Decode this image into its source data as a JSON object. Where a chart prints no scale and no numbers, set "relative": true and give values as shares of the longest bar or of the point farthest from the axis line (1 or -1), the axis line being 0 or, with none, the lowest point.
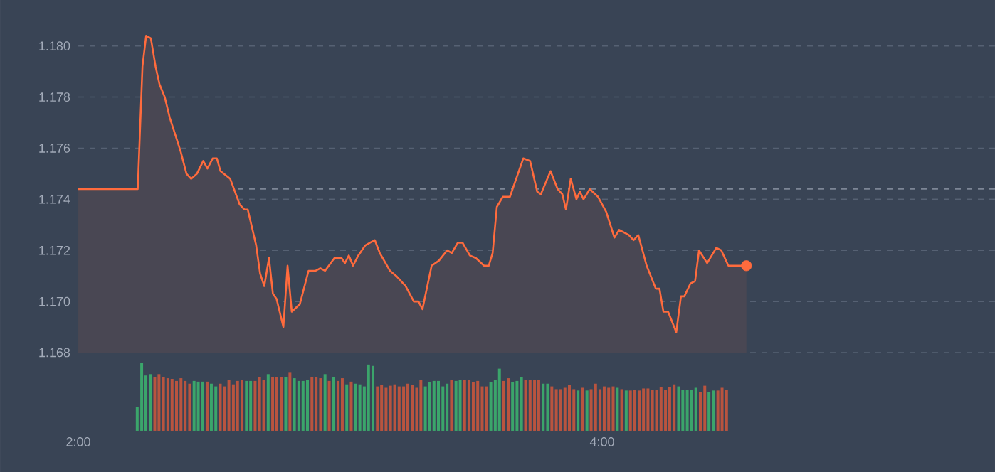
{
  "chart_data": [
    {
      "type": "area",
      "xlim": [
        2,
        5.5
      ],
      "ylim": [
        1.168,
        1.1818
      ],
      "yticks": [
        {
          "value": 1.168,
          "label": "1.168"
        },
        {
          "value": 1.17,
          "label": "1.170"
        },
        {
          "value": 1.172,
          "label": "1.172"
        },
        {
          "value": 1.174,
          "label": "1.174"
        },
        {
          "value": 1.176,
          "label": "1.176"
        },
        {
          "value": 1.178,
          "label": "1.178"
        },
        {
          "value": 1.18,
          "label": "1.180"
        }
      ],
      "grid": "y",
      "tick_labels": "y",
      "line_style": "solid",
      "ref_lines": [
        {
          "axis": "y",
          "value": 1.1744,
          "color": "#7d8696",
          "line_style": "dashed"
        }
      ],
      "series": [
        {
          "type": "area",
          "color": "#ff6b3d",
          "x": [
            2.0,
            2.227,
            2.245,
            2.259,
            2.277,
            2.295,
            2.31,
            2.33,
            2.349,
            2.39,
            2.413,
            2.431,
            2.453,
            2.477,
            2.493,
            2.513,
            2.529,
            2.543,
            2.58,
            2.616,
            2.634,
            2.647,
            2.679,
            2.694,
            2.71,
            2.728,
            2.743,
            2.757,
            2.783,
            2.799,
            2.815,
            2.846,
            2.879,
            2.906,
            2.924,
            2.942,
            2.978,
            3.005,
            3.018,
            3.033,
            3.049,
            3.069,
            3.096,
            3.114,
            3.132,
            3.151,
            3.19,
            3.214,
            3.25,
            3.281,
            3.299,
            3.314,
            3.349,
            3.377,
            3.408,
            3.426,
            3.449,
            3.467,
            3.495,
            3.518,
            3.549,
            3.567,
            3.582,
            3.598,
            3.621,
            3.648,
            3.699,
            3.725,
            3.752,
            3.766,
            3.803,
            3.83,
            3.848,
            3.862,
            3.88,
            3.902,
            3.915,
            3.929,
            3.953,
            3.984,
            4.016,
            4.047,
            4.065,
            4.102,
            4.12,
            4.138,
            4.17,
            4.205,
            4.219,
            4.234,
            4.252,
            4.283,
            4.301,
            4.314,
            4.337,
            4.355,
            4.37,
            4.401,
            4.436,
            4.455,
            4.482,
            4.551
          ],
          "values": [
            1.1744,
            1.1744,
            1.1792,
            1.1804,
            1.1803,
            1.1792,
            1.1785,
            1.178,
            1.1772,
            1.1759,
            1.175,
            1.1748,
            1.175,
            1.1755,
            1.1752,
            1.1756,
            1.1756,
            1.1751,
            1.1748,
            1.1738,
            1.1736,
            1.1736,
            1.1722,
            1.1711,
            1.1706,
            1.1717,
            1.1703,
            1.1701,
            1.169,
            1.1714,
            1.1696,
            1.1699,
            1.1712,
            1.1712,
            1.1713,
            1.1712,
            1.1717,
            1.1717,
            1.1715,
            1.1718,
            1.1714,
            1.1718,
            1.1722,
            1.1723,
            1.1724,
            1.1719,
            1.1712,
            1.171,
            1.1706,
            1.17,
            1.17,
            1.1697,
            1.1714,
            1.1716,
            1.172,
            1.1719,
            1.1723,
            1.1723,
            1.1718,
            1.1717,
            1.1714,
            1.1714,
            1.1719,
            1.1737,
            1.1741,
            1.1741,
            1.1756,
            1.1755,
            1.1743,
            1.1742,
            1.1751,
            1.1744,
            1.1742,
            1.1736,
            1.1748,
            1.174,
            1.1743,
            1.174,
            1.1744,
            1.1741,
            1.1735,
            1.1725,
            1.1728,
            1.1726,
            1.1724,
            1.1726,
            1.1714,
            1.1705,
            1.1705,
            1.1696,
            1.1696,
            1.1688,
            1.1702,
            1.1702,
            1.1707,
            1.1708,
            1.172,
            1.1715,
            1.1721,
            1.172,
            1.1714,
            1.1714
          ]
        },
        {
          "type": "scatter",
          "color": "#ff6b3d",
          "marker": "circle",
          "x": [
            4.551
          ],
          "values": [
            1.1714
          ]
        }
      ]
    },
    {
      "type": "bar",
      "relative": true,
      "xlim": [
        2,
        5.5
      ],
      "xticks": [
        {
          "value": 2,
          "label": "2:00"
        },
        {
          "value": 4,
          "label": "4:00"
        }
      ],
      "tick_labels": "x",
      "x": [
        2.225,
        2.242,
        2.258,
        2.275,
        2.292,
        2.308,
        2.325,
        2.342,
        2.358,
        2.375,
        2.392,
        2.408,
        2.425,
        2.442,
        2.458,
        2.475,
        2.492,
        2.508,
        2.525,
        2.542,
        2.558,
        2.575,
        2.592,
        2.608,
        2.625,
        2.642,
        2.658,
        2.675,
        2.692,
        2.708,
        2.725,
        2.742,
        2.758,
        2.775,
        2.792,
        2.808,
        2.825,
        2.842,
        2.858,
        2.875,
        2.892,
        2.908,
        2.925,
        2.942,
        2.958,
        2.975,
        2.992,
        3.008,
        3.025,
        3.042,
        3.058,
        3.075,
        3.092,
        3.108,
        3.125,
        3.142,
        3.158,
        3.175,
        3.192,
        3.208,
        3.225,
        3.242,
        3.258,
        3.275,
        3.292,
        3.308,
        3.325,
        3.342,
        3.358,
        3.375,
        3.392,
        3.408,
        3.425,
        3.442,
        3.458,
        3.475,
        3.492,
        3.508,
        3.525,
        3.542,
        3.558,
        3.575,
        3.592,
        3.608,
        3.625,
        3.642,
        3.658,
        3.675,
        3.692,
        3.708,
        3.725,
        3.742,
        3.758,
        3.775,
        3.792,
        3.808,
        3.825,
        3.842,
        3.858,
        3.875,
        3.892,
        3.908,
        3.925,
        3.942,
        3.958,
        3.975,
        3.992,
        4.008,
        4.025,
        4.042,
        4.058,
        4.075,
        4.092,
        4.108,
        4.125,
        4.142,
        4.158,
        4.175,
        4.192,
        4.208,
        4.225,
        4.242,
        4.258,
        4.275,
        4.292,
        4.308,
        4.325,
        4.342,
        4.358,
        4.375,
        4.392,
        4.408,
        4.425,
        4.442,
        4.458,
        4.475
      ],
      "values": [
        0.35,
        1.0,
        0.81,
        0.83,
        0.79,
        0.83,
        0.79,
        0.77,
        0.76,
        0.73,
        0.77,
        0.73,
        0.69,
        0.73,
        0.72,
        0.72,
        0.72,
        0.69,
        0.65,
        0.69,
        0.65,
        0.75,
        0.68,
        0.73,
        0.75,
        0.73,
        0.73,
        0.73,
        0.79,
        0.75,
        0.83,
        0.79,
        0.79,
        0.79,
        0.79,
        0.85,
        0.77,
        0.73,
        0.73,
        0.75,
        0.79,
        0.79,
        0.77,
        0.83,
        0.73,
        0.79,
        0.73,
        0.77,
        0.68,
        0.72,
        0.69,
        0.68,
        0.65,
        0.97,
        0.95,
        0.65,
        0.67,
        0.63,
        0.66,
        0.68,
        0.65,
        0.65,
        0.69,
        0.67,
        0.63,
        0.75,
        0.65,
        0.71,
        0.73,
        0.73,
        0.65,
        0.69,
        0.75,
        0.73,
        0.75,
        0.75,
        0.75,
        0.71,
        0.73,
        0.65,
        0.65,
        0.71,
        0.75,
        0.91,
        0.73,
        0.77,
        0.71,
        0.73,
        0.79,
        0.75,
        0.75,
        0.75,
        0.75,
        0.69,
        0.69,
        0.65,
        0.61,
        0.61,
        0.63,
        0.67,
        0.61,
        0.59,
        0.63,
        0.59,
        0.61,
        0.69,
        0.61,
        0.65,
        0.63,
        0.65,
        0.63,
        0.61,
        0.59,
        0.59,
        0.6,
        0.59,
        0.62,
        0.62,
        0.6,
        0.6,
        0.64,
        0.6,
        0.64,
        0.68,
        0.65,
        0.6,
        0.6,
        0.6,
        0.63,
        0.57,
        0.66,
        0.57,
        0.59,
        0.59,
        0.63,
        0.6
      ],
      "colors": [
        "#3ba56b",
        "#3ba56b",
        "#3ba56b",
        "#3ba56b",
        "#b9543f",
        "#b9543f",
        "#b9543f",
        "#b9543f",
        "#b9543f",
        "#b9543f",
        "#b9543f",
        "#b9543f",
        "#b9543f",
        "#3ba56b",
        "#3ba56b",
        "#3ba56b",
        "#b9543f",
        "#3ba56b",
        "#3ba56b",
        "#b9543f",
        "#b9543f",
        "#b9543f",
        "#b9543f",
        "#b9543f",
        "#b9543f",
        "#3ba56b",
        "#3ba56b",
        "#b9543f",
        "#b9543f",
        "#b9543f",
        "#3ba56b",
        "#b9543f",
        "#b9543f",
        "#b9543f",
        "#3ba56b",
        "#b9543f",
        "#3ba56b",
        "#3ba56b",
        "#3ba56b",
        "#3ba56b",
        "#b9543f",
        "#b9543f",
        "#b9543f",
        "#3ba56b",
        "#b9543f",
        "#3ba56b",
        "#b9543f",
        "#b9543f",
        "#3ba56b",
        "#b9543f",
        "#3ba56b",
        "#3ba56b",
        "#3ba56b",
        "#3ba56b",
        "#3ba56b",
        "#b9543f",
        "#b9543f",
        "#b9543f",
        "#b9543f",
        "#b9543f",
        "#b9543f",
        "#b9543f",
        "#b9543f",
        "#b9543f",
        "#b9543f",
        "#b9543f",
        "#3ba56b",
        "#3ba56b",
        "#3ba56b",
        "#3ba56b",
        "#3ba56b",
        "#3ba56b",
        "#b9543f",
        "#3ba56b",
        "#3ba56b",
        "#b9543f",
        "#b9543f",
        "#b9543f",
        "#b9543f",
        "#b9543f",
        "#b9543f",
        "#3ba56b",
        "#3ba56b",
        "#3ba56b",
        "#b9543f",
        "#b9543f",
        "#3ba56b",
        "#3ba56b",
        "#3ba56b",
        "#b9543f",
        "#b9543f",
        "#b9543f",
        "#b9543f",
        "#3ba56b",
        "#3ba56b",
        "#b9543f",
        "#b9543f",
        "#b9543f",
        "#b9543f",
        "#b9543f",
        "#b9543f",
        "#3ba56b",
        "#b9543f",
        "#3ba56b",
        "#b9543f",
        "#b9543f",
        "#b9543f",
        "#b9543f",
        "#b9543f",
        "#b9543f",
        "#3ba56b",
        "#b9543f",
        "#3ba56b",
        "#b9543f",
        "#b9543f",
        "#b9543f",
        "#b9543f",
        "#b9543f",
        "#b9543f",
        "#b9543f",
        "#b9543f",
        "#b9543f",
        "#b9543f",
        "#b9543f",
        "#3ba56b",
        "#3ba56b",
        "#3ba56b",
        "#3ba56b",
        "#3ba56b",
        "#b9543f",
        "#b9543f",
        "#3ba56b",
        "#3ba56b",
        "#b9543f",
        "#b9543f",
        "#b9543f"
      ]
    }
  ]
}
